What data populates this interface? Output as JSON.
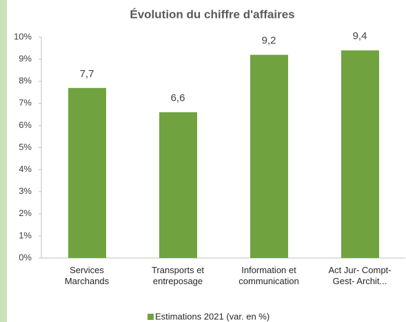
{
  "chart_data": {
    "type": "bar",
    "title": "Évolution du chiffre d'affaires",
    "categories": [
      "Services\nMarchands",
      "Transports et\nentreposage",
      "Information et\ncommunication",
      "Act Jur- Compt-\nGest- Archit..."
    ],
    "series": [
      {
        "name": "Estimations 2021 (var. en %)",
        "color": "#70a340",
        "values": [
          7.7,
          6.6,
          9.2,
          9.4
        ],
        "value_labels": [
          "7,7",
          "6,6",
          "9,2",
          "9,4"
        ]
      }
    ],
    "ylim": [
      0,
      10
    ],
    "yticks": [
      {
        "value": 0,
        "label": "0%"
      },
      {
        "value": 1,
        "label": "1%"
      },
      {
        "value": 2,
        "label": "2%"
      },
      {
        "value": 3,
        "label": "3%"
      },
      {
        "value": 4,
        "label": "4%"
      },
      {
        "value": 5,
        "label": "5%"
      },
      {
        "value": 6,
        "label": "6%"
      },
      {
        "value": 7,
        "label": "7%"
      },
      {
        "value": 8,
        "label": "8%"
      },
      {
        "value": 9,
        "label": "9%"
      },
      {
        "value": 10,
        "label": "10%"
      }
    ],
    "grid": false,
    "legend": "bottom"
  }
}
